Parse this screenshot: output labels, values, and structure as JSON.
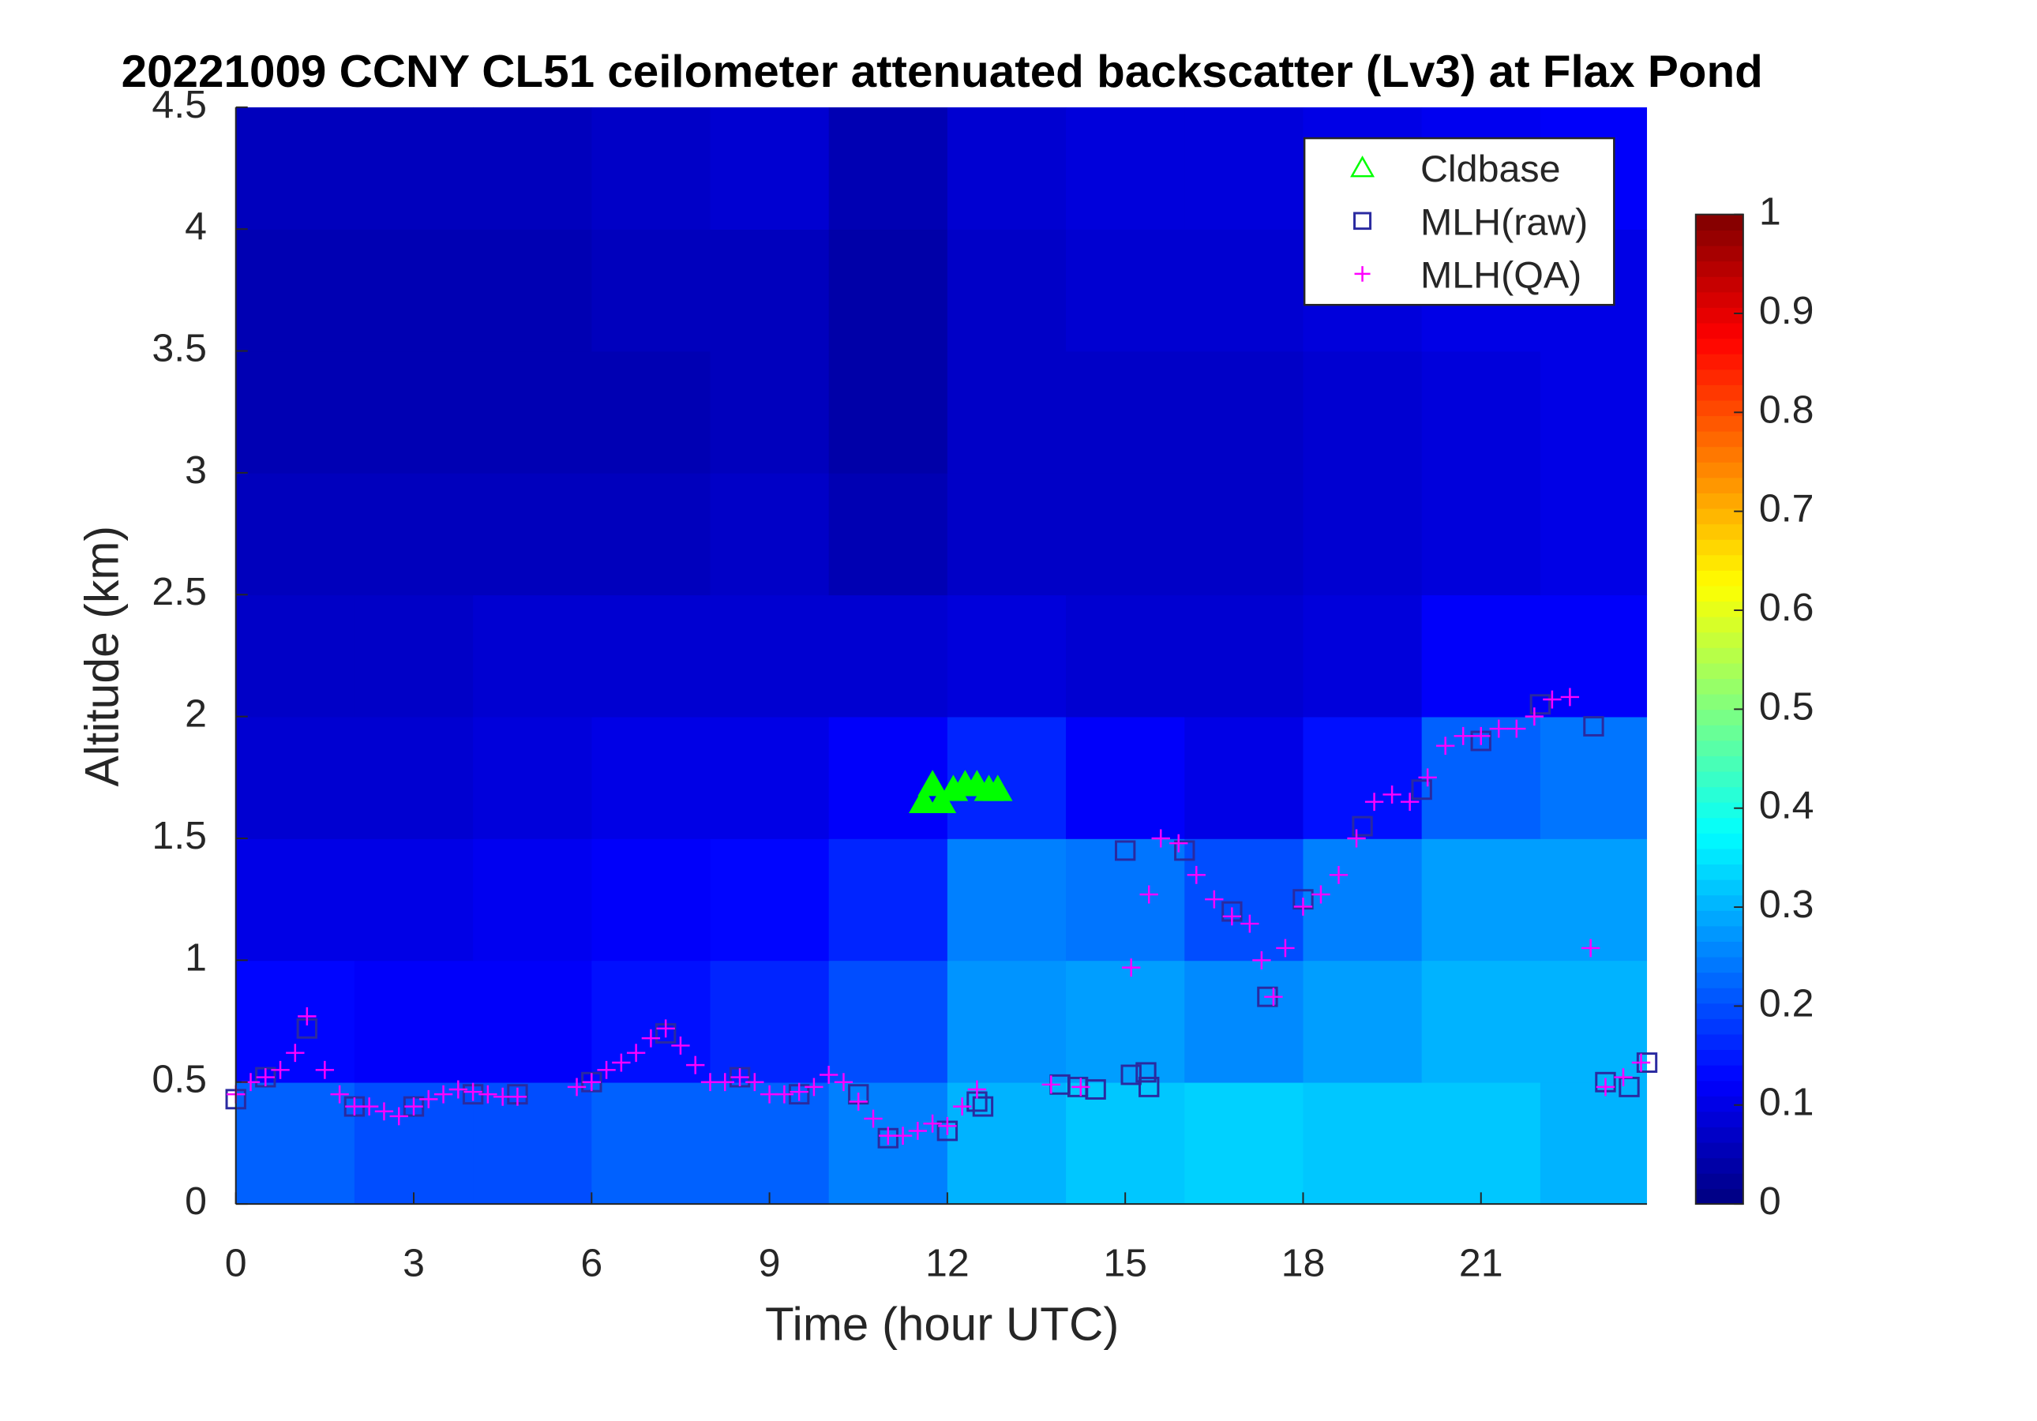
{
  "chart_data": {
    "type": "heatmap",
    "title": "20221009 CCNY CL51 ceilometer attenuated backscatter (Lv3) at Flax Pond",
    "xlabel": "Time (hour UTC)",
    "ylabel": "Altitude (km)",
    "xlim": [
      0,
      23.8
    ],
    "ylim": [
      0,
      4.5
    ],
    "xticks": [
      0,
      3,
      6,
      9,
      12,
      15,
      18,
      21
    ],
    "yticks": [
      0,
      0.5,
      1,
      1.5,
      2,
      2.5,
      3,
      3.5,
      4,
      4.5
    ],
    "colormap": "jet",
    "clim": [
      0,
      1
    ],
    "cticks": [
      0,
      0.1,
      0.2,
      0.3,
      0.4,
      0.5,
      0.6,
      0.7,
      0.8,
      0.9,
      1
    ],
    "legend": "upper right",
    "x": [
      1,
      3,
      5,
      7,
      9,
      11,
      13,
      15,
      17,
      19,
      21,
      23
    ],
    "y": [
      0.25,
      0.75,
      1.25,
      1.75,
      2.25,
      2.75,
      3.25,
      3.75,
      4.25
    ],
    "z": [
      [
        0.22,
        0.2,
        0.2,
        0.22,
        0.22,
        0.25,
        0.3,
        0.32,
        0.33,
        0.32,
        0.32,
        0.3
      ],
      [
        0.13,
        0.12,
        0.12,
        0.14,
        0.16,
        0.2,
        0.27,
        0.28,
        0.26,
        0.28,
        0.3,
        0.3
      ],
      [
        0.1,
        0.1,
        0.11,
        0.12,
        0.13,
        0.16,
        0.25,
        0.24,
        0.2,
        0.25,
        0.28,
        0.28
      ],
      [
        0.08,
        0.08,
        0.09,
        0.1,
        0.1,
        0.12,
        0.16,
        0.12,
        0.1,
        0.14,
        0.22,
        0.24
      ],
      [
        0.07,
        0.07,
        0.08,
        0.08,
        0.08,
        0.08,
        0.09,
        0.08,
        0.08,
        0.09,
        0.12,
        0.12
      ],
      [
        0.06,
        0.06,
        0.06,
        0.06,
        0.07,
        0.05,
        0.07,
        0.07,
        0.07,
        0.08,
        0.09,
        0.1
      ],
      [
        0.05,
        0.05,
        0.05,
        0.05,
        0.06,
        0.04,
        0.07,
        0.07,
        0.07,
        0.08,
        0.09,
        0.1
      ],
      [
        0.05,
        0.05,
        0.05,
        0.06,
        0.06,
        0.04,
        0.07,
        0.08,
        0.08,
        0.09,
        0.1,
        0.1
      ],
      [
        0.06,
        0.06,
        0.06,
        0.07,
        0.08,
        0.05,
        0.08,
        0.09,
        0.09,
        0.1,
        0.11,
        0.12
      ]
    ],
    "series": [
      {
        "name": "Cldbase",
        "color": "#00ff00",
        "marker": "triangle",
        "x": [
          11.6,
          11.75,
          11.9,
          12.1,
          12.3,
          12.5,
          12.7,
          12.85
        ],
        "values": [
          1.65,
          1.72,
          1.65,
          1.7,
          1.72,
          1.72,
          1.7,
          1.7
        ]
      },
      {
        "name": "MLH(raw)",
        "color": "#2a2aa0",
        "marker": "square",
        "x": [
          0,
          0.5,
          1.2,
          2,
          3,
          4,
          4.75,
          6,
          7.25,
          8.5,
          9.5,
          10.5,
          11,
          12,
          12.5,
          12.6,
          13.9,
          14.2,
          14.5,
          15,
          15.1,
          15.35,
          15.4,
          16,
          16.8,
          17.4,
          18,
          19,
          20,
          21,
          22,
          22.9,
          23.1,
          23.5,
          23.8
        ],
        "values": [
          0.43,
          0.52,
          0.72,
          0.4,
          0.4,
          0.45,
          0.45,
          0.5,
          0.7,
          0.52,
          0.45,
          0.45,
          0.27,
          0.3,
          0.42,
          0.4,
          0.49,
          0.48,
          0.47,
          1.45,
          0.53,
          0.54,
          0.48,
          1.45,
          1.2,
          0.85,
          1.25,
          1.55,
          1.7,
          1.9,
          2.05,
          1.96,
          0.5,
          0.48,
          0.58
        ]
      },
      {
        "name": "MLH(QA)",
        "color": "#ff00ff",
        "marker": "plus",
        "x": [
          0,
          0.25,
          0.5,
          0.75,
          1,
          1.2,
          1.5,
          1.75,
          2,
          2.25,
          2.5,
          2.75,
          3,
          3.25,
          3.5,
          3.75,
          4,
          4.25,
          4.5,
          4.75,
          5.75,
          6,
          6.25,
          6.5,
          6.75,
          7,
          7.25,
          7.5,
          7.75,
          8,
          8.25,
          8.5,
          8.75,
          9,
          9.25,
          9.5,
          9.75,
          10,
          10.25,
          10.5,
          10.75,
          11,
          11.25,
          11.5,
          11.75,
          12,
          12.25,
          12.5,
          13.75,
          14.25,
          15.1,
          15.4,
          15.6,
          15.9,
          16.2,
          16.5,
          16.8,
          17.1,
          17.3,
          17.5,
          17.7,
          18,
          18.3,
          18.6,
          18.9,
          19.2,
          19.5,
          19.8,
          20.1,
          20.4,
          20.7,
          21,
          21.3,
          21.6,
          21.9,
          22.2,
          22.5,
          22.85,
          23.1,
          23.4,
          23.7
        ],
        "values": [
          0.45,
          0.5,
          0.52,
          0.55,
          0.62,
          0.77,
          0.55,
          0.45,
          0.4,
          0.4,
          0.38,
          0.36,
          0.4,
          0.43,
          0.45,
          0.47,
          0.46,
          0.45,
          0.44,
          0.44,
          0.48,
          0.5,
          0.55,
          0.58,
          0.62,
          0.68,
          0.72,
          0.65,
          0.57,
          0.5,
          0.5,
          0.52,
          0.5,
          0.45,
          0.45,
          0.46,
          0.48,
          0.53,
          0.5,
          0.42,
          0.35,
          0.28,
          0.28,
          0.3,
          0.33,
          0.32,
          0.4,
          0.47,
          0.49,
          0.48,
          0.97,
          1.27,
          1.5,
          1.48,
          1.35,
          1.25,
          1.18,
          1.15,
          1.0,
          0.85,
          1.05,
          1.22,
          1.27,
          1.35,
          1.5,
          1.65,
          1.68,
          1.65,
          1.75,
          1.88,
          1.92,
          1.92,
          1.95,
          1.95,
          2.0,
          2.07,
          2.08,
          1.05,
          0.48,
          0.52,
          0.58
        ]
      }
    ]
  }
}
